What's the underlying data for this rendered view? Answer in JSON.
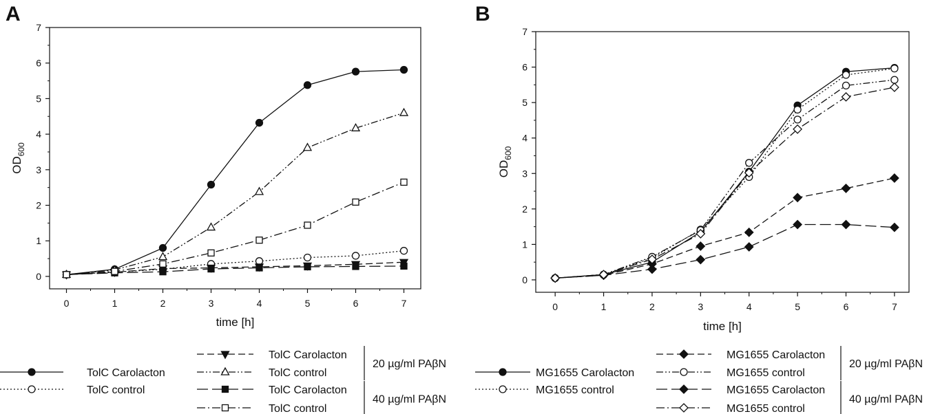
{
  "chart_data": [
    {
      "panel": "A",
      "type": "line",
      "xlabel": "time [h]",
      "ylabel": "OD",
      "ylabel_sub": "600",
      "xlim": [
        -0.35,
        7.35
      ],
      "ylim": [
        -0.35,
        7
      ],
      "xticks": [
        0,
        1,
        2,
        3,
        4,
        5,
        6,
        7
      ],
      "yticks": [
        0,
        1,
        2,
        3,
        4,
        5,
        6,
        7
      ],
      "x": [
        0,
        1,
        2,
        3,
        4,
        5,
        6,
        7
      ],
      "series": [
        {
          "name": "TolC Carolacton",
          "values": [
            0.05,
            0.2,
            0.8,
            2.58,
            4.32,
            5.38,
            5.76,
            5.81
          ],
          "marker": "circle-filled",
          "dash": "solid"
        },
        {
          "name": "TolC control",
          "values": [
            0.05,
            0.12,
            0.2,
            0.35,
            0.43,
            0.53,
            0.58,
            0.72
          ],
          "marker": "circle-open",
          "dash": "dot"
        },
        {
          "name": "TolC Carolacton",
          "values": [
            0.05,
            0.12,
            0.22,
            0.24,
            0.27,
            0.3,
            0.34,
            0.4
          ],
          "marker": "triangle-down-filled",
          "dash": "dash"
        },
        {
          "name": "TolC control",
          "values": [
            0.05,
            0.18,
            0.55,
            1.38,
            2.38,
            3.62,
            4.17,
            4.6
          ],
          "marker": "triangle-up-open",
          "dash": "dashdotdot"
        },
        {
          "name": "TolC Carolacton",
          "values": [
            0.05,
            0.1,
            0.13,
            0.21,
            0.24,
            0.27,
            0.28,
            0.29
          ],
          "marker": "square-filled",
          "dash": "longdash"
        },
        {
          "name": "TolC control",
          "values": [
            0.05,
            0.14,
            0.35,
            0.66,
            1.02,
            1.44,
            2.09,
            2.65
          ],
          "marker": "square-open",
          "dash": "dashdot"
        }
      ],
      "legend": {
        "left": [
          {
            "series": 0,
            "label": "TolC Carolacton"
          },
          {
            "series": 1,
            "label": "TolC control"
          }
        ],
        "groups": [
          {
            "label": "20 µg/ml PAβN",
            "entries": [
              {
                "series": 2,
                "label": "TolC Carolacton"
              },
              {
                "series": 3,
                "label": "TolC control"
              }
            ]
          },
          {
            "label": "40 µg/ml PAβN",
            "entries": [
              {
                "series": 4,
                "label": "TolC Carolacton"
              },
              {
                "series": 5,
                "label": "TolC control"
              }
            ]
          }
        ]
      }
    },
    {
      "panel": "B",
      "type": "line",
      "xlabel": "time [h]",
      "ylabel": "OD",
      "ylabel_sub": "600",
      "xlim": [
        -0.4,
        7.3
      ],
      "ylim": [
        -0.35,
        7
      ],
      "xticks": [
        0,
        1,
        2,
        3,
        4,
        5,
        6,
        7
      ],
      "yticks": [
        0,
        1,
        2,
        3,
        4,
        5,
        6,
        7
      ],
      "x": [
        0,
        1,
        2,
        3,
        4,
        5,
        6,
        7
      ],
      "series": [
        {
          "name": "MG1655 Carolacton",
          "values": [
            0.05,
            0.15,
            0.5,
            1.35,
            3.05,
            4.92,
            5.87,
            5.98
          ],
          "marker": "circle-filled",
          "dash": "solid"
        },
        {
          "name": "MG1655 control",
          "values": [
            0.05,
            0.14,
            0.62,
            1.42,
            2.9,
            4.8,
            5.78,
            5.96
          ],
          "marker": "circle-open",
          "dash": "dot"
        },
        {
          "name": "MG1655 Carolacton",
          "values": [
            0.05,
            0.13,
            0.45,
            0.95,
            1.34,
            2.32,
            2.58,
            2.87
          ],
          "marker": "diamond-filled-round",
          "dash": "dash"
        },
        {
          "name": "MG1655 control",
          "values": [
            0.05,
            0.15,
            0.65,
            1.4,
            3.3,
            4.52,
            5.48,
            5.64
          ],
          "marker": "circle-open",
          "dash": "dashdotdot"
        },
        {
          "name": "MG1655 Carolacton",
          "values": [
            0.05,
            0.13,
            0.3,
            0.57,
            0.93,
            1.56,
            1.56,
            1.48
          ],
          "marker": "diamond-filled",
          "dash": "longdash"
        },
        {
          "name": "MG1655 control",
          "values": [
            0.05,
            0.15,
            0.58,
            1.3,
            3.02,
            4.25,
            5.16,
            5.43
          ],
          "marker": "diamond-open",
          "dash": "dashdot"
        }
      ],
      "legend": {
        "left": [
          {
            "series": 0,
            "label": "MG1655 Carolacton"
          },
          {
            "series": 1,
            "label": "MG1655 control"
          }
        ],
        "groups": [
          {
            "label": "20 µg/ml PAβN",
            "entries": [
              {
                "series": 2,
                "label": "MG1655 Carolacton"
              },
              {
                "series": 3,
                "label": "MG1655 control"
              }
            ]
          },
          {
            "label": "40 µg/ml PAβN",
            "entries": [
              {
                "series": 4,
                "label": "MG1655 Carolacton"
              },
              {
                "series": 5,
                "label": "MG1655 control"
              }
            ]
          }
        ]
      }
    }
  ]
}
